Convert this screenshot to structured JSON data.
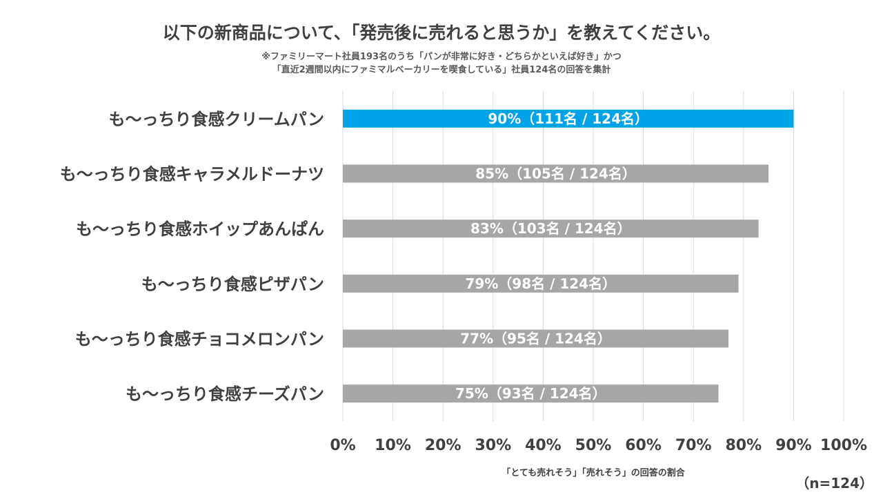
{
  "header": {
    "title": "以下の新商品について、「発売後に売れると思うか」を教えてください。",
    "subtitle_line1": "※ファミリーマート社員193名のうち「パンが非常に好き・どちらかといえば好き」かつ",
    "subtitle_line2": "「直近2週間以内にファミマルベーカリーを喫食している」社員124名の回答を集計"
  },
  "footer": {
    "sample_size": "（n=124）"
  },
  "chart_data": {
    "type": "bar",
    "orientation": "horizontal",
    "categories": [
      "も～っちり食感クリームパン",
      "も～っちり食感キャラメルドーナツ",
      "も～っちり食感ホイップあんぱん",
      "も～っちり食感ピザパン",
      "も～っちり食感チョコメロンパン",
      "も～っちり食感チーズパン"
    ],
    "values": [
      90,
      85,
      83,
      79,
      77,
      75
    ],
    "data_labels": [
      "90%（111名 / 124名）",
      "85%（105名 / 124名）",
      "83%（103名 / 124名）",
      "79%（98名 / 124名）",
      "77%（95名 / 124名）",
      "75%（93名 / 124名）"
    ],
    "bar_colors": [
      "#00a3e8",
      "#a6a6a6",
      "#a6a6a6",
      "#a6a6a6",
      "#a6a6a6",
      "#a6a6a6"
    ],
    "xlim": [
      0,
      100
    ],
    "xticks": [
      0,
      10,
      20,
      30,
      40,
      50,
      60,
      70,
      80,
      90,
      100
    ],
    "xtick_labels": [
      "0%",
      "10%",
      "20%",
      "30%",
      "40%",
      "50%",
      "60%",
      "70%",
      "80%",
      "90%",
      "100%"
    ],
    "xlabel": "「とても売れそう」「売れそう」の回答の割合",
    "ylabel": "",
    "grid": true,
    "gridline_color": "#d9d9d9"
  }
}
